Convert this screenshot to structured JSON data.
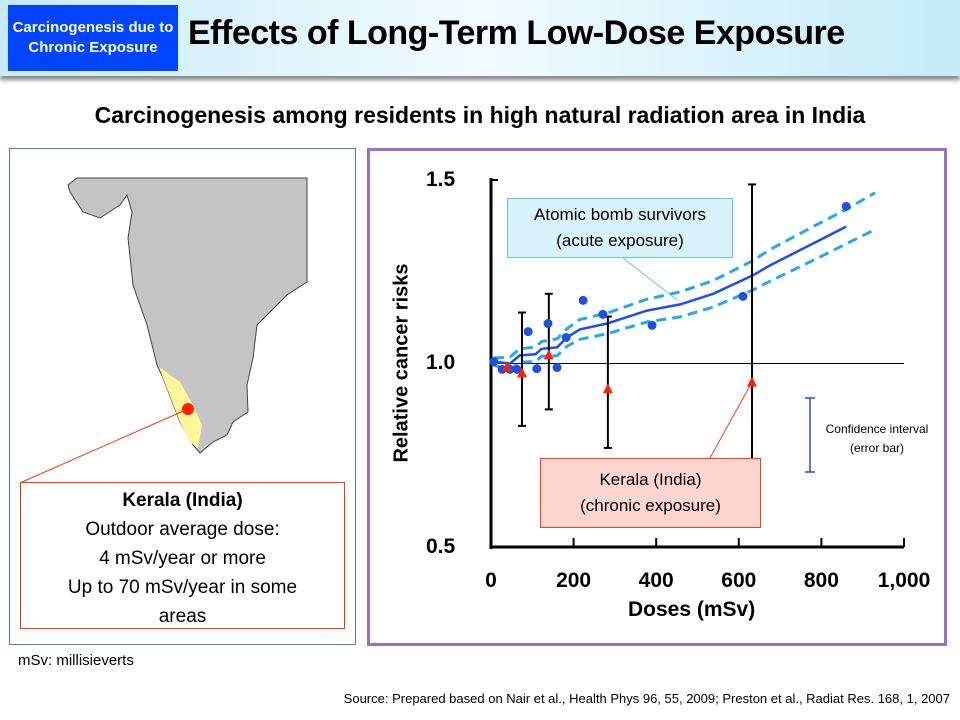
{
  "header": {
    "badge": "Carcinogenesis due to Chronic Exposure",
    "title": "Effects of Long-Term Low-Dose Exposure",
    "accent": "#0044ff"
  },
  "subtitle": "Carcinogenesis among residents in high natural radiation area in India",
  "map": {
    "kerala_box": {
      "title": "Kerala (India)",
      "line1": "Outdoor average dose:",
      "line2": "4 mSv/year or more",
      "line3": "Up to 70 mSv/year in some areas"
    },
    "colors": {
      "land": "#c4c4c4",
      "kerala": "#fdf79a",
      "marker": "#ff2200"
    }
  },
  "footnote": "mSv: millisieverts",
  "source": "Source: Prepared based on Nair et al., Health Phys 96, 55, 2009; Preston et al., Radiat Res. 168, 1, 2007",
  "chart_data": {
    "type": "scatter",
    "xlabel": "Doses (mSv)",
    "ylabel": "Relative cancer risks",
    "xlim": [
      0,
      1000
    ],
    "ylim": [
      0.5,
      1.5
    ],
    "x_ticks": [
      "0",
      "200",
      "400",
      "600",
      "800",
      "1,000"
    ],
    "y_ticks": [
      "1.5",
      "1.0",
      "0.5"
    ],
    "reference_line": 1.0,
    "annotations": {
      "atomic": [
        "Atomic bomb survivors",
        "(acute exposure)"
      ],
      "kerala": [
        "Kerala (India)",
        "(chronic exposure)"
      ],
      "confidence": [
        "Confidence interval",
        "(error bar)"
      ]
    },
    "atomic_points": {
      "color": "#1f4fe8",
      "x": [
        7,
        27,
        46,
        63,
        90,
        111,
        138,
        160,
        182,
        223,
        271,
        390,
        610,
        860
      ],
      "y": [
        1.005,
        0.984,
        0.984,
        0.984,
        1.087,
        0.986,
        1.109,
        0.989,
        1.071,
        1.172,
        1.134,
        1.104,
        1.183,
        1.428
      ]
    },
    "atomic_fit": {
      "color": "#1f4fe8",
      "x": [
        7,
        46,
        70,
        107,
        123,
        160,
        184,
        215,
        281,
        377,
        458,
        538,
        634,
        675,
        780,
        860
      ],
      "y": [
        1.005,
        1.0,
        1.022,
        1.025,
        1.04,
        1.044,
        1.071,
        1.093,
        1.109,
        1.144,
        1.161,
        1.19,
        1.24,
        1.267,
        1.327,
        1.373
      ]
    },
    "atomic_band": {
      "color": "#22aaee",
      "x": [
        7,
        46,
        70,
        107,
        123,
        160,
        184,
        215,
        281,
        377,
        458,
        538,
        634,
        675,
        780,
        860,
        930
      ],
      "upper": [
        1.015,
        1.018,
        1.04,
        1.045,
        1.06,
        1.067,
        1.095,
        1.12,
        1.137,
        1.175,
        1.195,
        1.226,
        1.28,
        1.31,
        1.373,
        1.42,
        1.465
      ],
      "lower": [
        0.995,
        0.982,
        1.004,
        1.005,
        1.02,
        1.021,
        1.047,
        1.066,
        1.081,
        1.113,
        1.127,
        1.154,
        1.2,
        1.224,
        1.281,
        1.326,
        1.365
      ]
    },
    "kerala_points": {
      "color": "#ff2200",
      "x": [
        39,
        75,
        140,
        283,
        632
      ],
      "y": [
        0.99,
        0.973,
        1.022,
        0.93,
        0.948
      ],
      "ci_low": [
        null,
        0.83,
        0.875,
        0.77,
        0.7
      ],
      "ci_high": [
        null,
        1.139,
        1.19,
        1.128,
        1.488
      ]
    }
  }
}
